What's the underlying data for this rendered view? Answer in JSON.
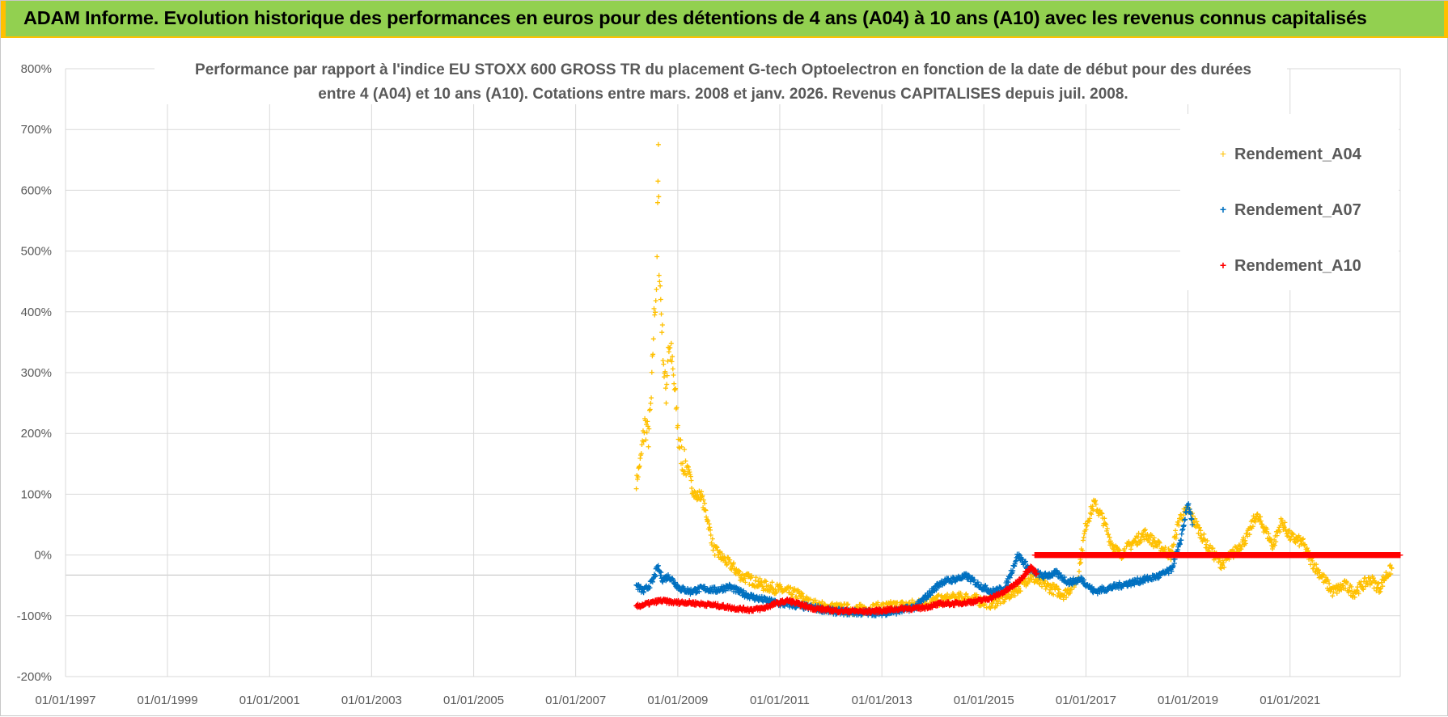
{
  "banner": {
    "title": "ADAM Informe. Evolution historique des performances en euros pour des détentions de 4 ans (A04) à 10 ans (A10) avec les revenus connus capitalisés"
  },
  "colors": {
    "banner_bg": "#92d050",
    "banner_accent": "#ffc000",
    "a04": "#ffc000",
    "a07": "#0070c0",
    "a10": "#ff0000",
    "grid": "#d9d9d9",
    "text": "#595959"
  },
  "chart_data": {
    "type": "scatter",
    "title_lines": [
      "Performance par rapport à l'indice EU STOXX 600 GROSS TR  du placement G-tech Optoelectron  en fonction de la date de début pour des durées",
      "entre 4 (A04) et 10 ans (A10).  Cotations entre mars. 2008 et janv. 2026.  Revenus CAPITALISES depuis juil. 2008."
    ],
    "xlabel": "",
    "ylabel": "",
    "x_tick_labels": [
      "01/01/1997",
      "01/01/1999",
      "01/01/2001",
      "01/01/2003",
      "01/01/2005",
      "01/01/2007",
      "01/01/2009",
      "01/01/2011",
      "01/01/2013",
      "01/01/2015",
      "01/01/2017",
      "01/01/2019",
      "01/01/2021"
    ],
    "y_tick_labels": [
      "800%",
      "700%",
      "600%",
      "500%",
      "400%",
      "300%",
      "200%",
      "100%",
      "0%",
      "-100%",
      "-200%"
    ],
    "xlim": [
      "1997-01-01",
      "2023-03-01"
    ],
    "ylim": [
      -200,
      800
    ],
    "y_unit": "%",
    "grid": true,
    "legend_position": "top-right",
    "marker": "+",
    "series": [
      {
        "name": "Rendement_A04",
        "color": "#ffc000",
        "points": [
          [
            "2008-03-10",
            118
          ],
          [
            "2008-04-15",
            165
          ],
          [
            "2008-05-10",
            215
          ],
          [
            "2008-06-05",
            195
          ],
          [
            "2008-06-25",
            255
          ],
          [
            "2008-07-15",
            390
          ],
          [
            "2008-08-01",
            440
          ],
          [
            "2008-08-10",
            560
          ],
          [
            "2008-08-15",
            665
          ],
          [
            "2008-08-20",
            480
          ],
          [
            "2008-09-05",
            400
          ],
          [
            "2008-09-25",
            300
          ],
          [
            "2008-10-10",
            265
          ],
          [
            "2008-10-25",
            345
          ],
          [
            "2008-11-15",
            330
          ],
          [
            "2008-12-01",
            290
          ],
          [
            "2008-12-20",
            245
          ],
          [
            "2009-01-10",
            185
          ],
          [
            "2009-02-05",
            155
          ],
          [
            "2009-03-10",
            145
          ],
          [
            "2009-04-15",
            110
          ],
          [
            "2009-05-15",
            95
          ],
          [
            "2009-06-15",
            100
          ],
          [
            "2009-08-01",
            60
          ],
          [
            "2009-09-15",
            10
          ],
          [
            "2009-11-15",
            -5
          ],
          [
            "2010-02-01",
            -20
          ],
          [
            "2010-04-01",
            -35
          ],
          [
            "2010-06-01",
            -40
          ],
          [
            "2010-09-01",
            -50
          ],
          [
            "2010-12-01",
            -55
          ],
          [
            "2011-02-15",
            -60
          ],
          [
            "2011-05-15",
            -65
          ],
          [
            "2011-08-01",
            -80
          ],
          [
            "2011-11-01",
            -85
          ],
          [
            "2012-03-01",
            -88
          ],
          [
            "2012-07-01",
            -90
          ],
          [
            "2012-11-01",
            -88
          ],
          [
            "2013-03-01",
            -85
          ],
          [
            "2013-07-01",
            -83
          ],
          [
            "2013-11-01",
            -80
          ],
          [
            "2014-02-01",
            -75
          ],
          [
            "2014-05-01",
            -72
          ],
          [
            "2014-09-01",
            -70
          ],
          [
            "2014-12-01",
            -75
          ],
          [
            "2015-03-01",
            -80
          ],
          [
            "2015-06-01",
            -70
          ],
          [
            "2015-09-01",
            -55
          ],
          [
            "2015-12-01",
            -35
          ],
          [
            "2016-02-01",
            -45
          ],
          [
            "2016-05-01",
            -55
          ],
          [
            "2016-08-01",
            -65
          ],
          [
            "2016-11-01",
            -40
          ],
          [
            "2017-01-01",
            50
          ],
          [
            "2017-03-01",
            85
          ],
          [
            "2017-05-01",
            60
          ],
          [
            "2017-07-01",
            20
          ],
          [
            "2017-09-01",
            0
          ],
          [
            "2017-12-01",
            20
          ],
          [
            "2018-03-01",
            35
          ],
          [
            "2018-06-01",
            15
          ],
          [
            "2018-09-01",
            0
          ],
          [
            "2018-11-01",
            60
          ],
          [
            "2019-01-01",
            75
          ],
          [
            "2019-03-01",
            50
          ],
          [
            "2019-06-01",
            10
          ],
          [
            "2019-09-01",
            -15
          ],
          [
            "2019-12-01",
            5
          ],
          [
            "2020-03-01",
            30
          ],
          [
            "2020-05-01",
            65
          ],
          [
            "2020-07-01",
            45
          ],
          [
            "2020-09-01",
            15
          ],
          [
            "2020-11-01",
            55
          ],
          [
            "2021-01-01",
            30
          ],
          [
            "2021-04-01",
            20
          ],
          [
            "2021-06-01",
            -10
          ],
          [
            "2021-08-01",
            -30
          ],
          [
            "2021-11-01",
            -60
          ],
          [
            "2022-02-01",
            -50
          ],
          [
            "2022-04-01",
            -62
          ],
          [
            "2022-06-01",
            -50
          ],
          [
            "2022-08-01",
            -40
          ],
          [
            "2022-10-01",
            -55
          ],
          [
            "2022-11-15",
            -35
          ],
          [
            "2022-12-31",
            -22
          ]
        ]
      },
      {
        "name": "Rendement_A07",
        "color": "#0070c0",
        "points": [
          [
            "2008-03-10",
            -50
          ],
          [
            "2008-05-01",
            -60
          ],
          [
            "2008-07-01",
            -45
          ],
          [
            "2008-08-10",
            -20
          ],
          [
            "2008-09-15",
            -40
          ],
          [
            "2008-11-01",
            -35
          ],
          [
            "2009-01-15",
            -55
          ],
          [
            "2009-04-01",
            -60
          ],
          [
            "2009-07-01",
            -55
          ],
          [
            "2009-10-01",
            -58
          ],
          [
            "2010-01-01",
            -52
          ],
          [
            "2010-04-01",
            -62
          ],
          [
            "2010-07-01",
            -70
          ],
          [
            "2010-10-01",
            -75
          ],
          [
            "2011-01-01",
            -80
          ],
          [
            "2011-04-01",
            -82
          ],
          [
            "2011-07-01",
            -85
          ],
          [
            "2011-10-01",
            -88
          ],
          [
            "2012-01-01",
            -92
          ],
          [
            "2012-05-01",
            -94
          ],
          [
            "2012-09-01",
            -95
          ],
          [
            "2013-01-01",
            -95
          ],
          [
            "2013-05-01",
            -92
          ],
          [
            "2013-09-01",
            -85
          ],
          [
            "2013-12-01",
            -65
          ],
          [
            "2014-03-01",
            -45
          ],
          [
            "2014-06-01",
            -40
          ],
          [
            "2014-09-01",
            -35
          ],
          [
            "2014-12-01",
            -50
          ],
          [
            "2015-03-01",
            -60
          ],
          [
            "2015-06-01",
            -55
          ],
          [
            "2015-09-01",
            0
          ],
          [
            "2015-12-01",
            -25
          ],
          [
            "2016-03-01",
            -35
          ],
          [
            "2016-06-01",
            -30
          ],
          [
            "2016-09-01",
            -45
          ],
          [
            "2016-12-01",
            -40
          ],
          [
            "2017-03-01",
            -60
          ],
          [
            "2017-06-01",
            -55
          ],
          [
            "2017-09-01",
            -50
          ],
          [
            "2017-12-01",
            -45
          ],
          [
            "2018-03-01",
            -40
          ],
          [
            "2018-06-01",
            -35
          ],
          [
            "2018-09-01",
            -25
          ],
          [
            "2018-11-01",
            15
          ],
          [
            "2019-01-01",
            85
          ],
          [
            "2019-02-01",
            50
          ]
        ]
      },
      {
        "name": "Rendement_A10",
        "color": "#ff0000",
        "points": [
          [
            "2008-03-10",
            -85
          ],
          [
            "2008-06-01",
            -80
          ],
          [
            "2008-09-01",
            -75
          ],
          [
            "2008-12-01",
            -78
          ],
          [
            "2009-03-01",
            -78
          ],
          [
            "2009-06-01",
            -80
          ],
          [
            "2009-09-01",
            -82
          ],
          [
            "2009-12-01",
            -85
          ],
          [
            "2010-03-01",
            -88
          ],
          [
            "2010-06-01",
            -90
          ],
          [
            "2010-09-01",
            -88
          ],
          [
            "2010-12-01",
            -80
          ],
          [
            "2011-03-01",
            -75
          ],
          [
            "2011-06-01",
            -82
          ],
          [
            "2011-09-01",
            -88
          ],
          [
            "2011-12-01",
            -90
          ],
          [
            "2012-03-01",
            -92
          ],
          [
            "2012-06-01",
            -92
          ],
          [
            "2012-09-01",
            -93
          ],
          [
            "2012-12-01",
            -92
          ],
          [
            "2013-03-01",
            -90
          ],
          [
            "2013-06-01",
            -88
          ],
          [
            "2013-09-01",
            -88
          ],
          [
            "2013-12-01",
            -85
          ],
          [
            "2014-03-01",
            -80
          ],
          [
            "2014-06-01",
            -80
          ],
          [
            "2014-09-01",
            -78
          ],
          [
            "2014-12-01",
            -75
          ],
          [
            "2015-03-01",
            -70
          ],
          [
            "2015-06-01",
            -60
          ],
          [
            "2015-09-01",
            -45
          ],
          [
            "2015-12-01",
            -20
          ],
          [
            "2016-01-15",
            -30
          ]
        ],
        "flat_segment": {
          "from": "2016-01-01",
          "to": "2023-02-28",
          "value": 0
        }
      }
    ]
  }
}
